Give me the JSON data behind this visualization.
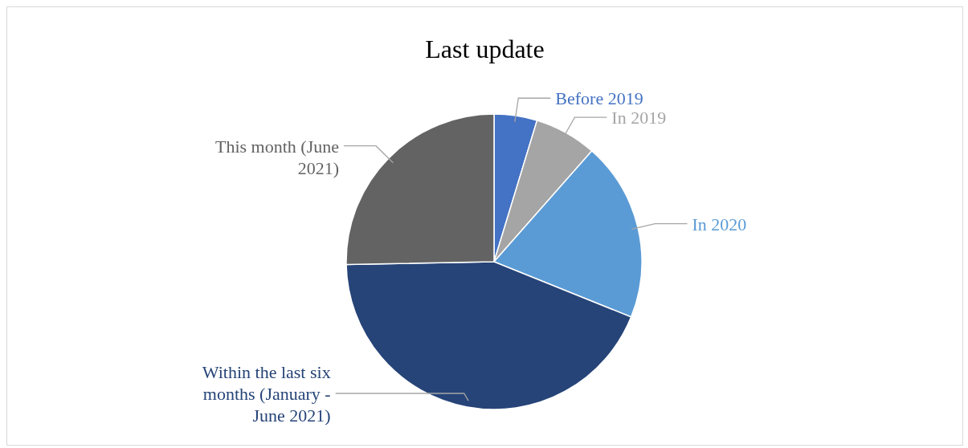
{
  "chart_data": {
    "type": "pie",
    "title": "Last update",
    "categories": [
      "Before 2019",
      "In 2019",
      "In 2020",
      "Within the last six months (January - June 2021)",
      "This month (June 2021)"
    ],
    "values": [
      4.7,
      6.8,
      19.6,
      43.6,
      25.3
    ],
    "colors": [
      "#4472c4",
      "#a5a5a5",
      "#5b9bd5",
      "#264478",
      "#636363"
    ]
  }
}
